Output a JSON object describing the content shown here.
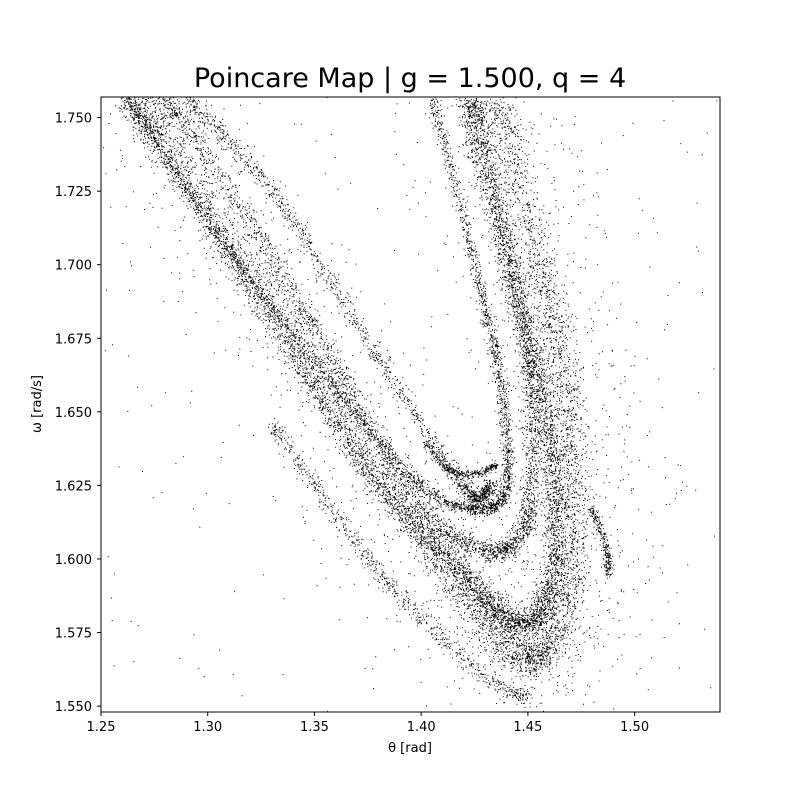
{
  "chart_data": {
    "type": "scatter",
    "title": "Poincare Map | g = 1.500, q = 4",
    "xlabel": "θ [rad]",
    "ylabel": "ω [rad/s]",
    "xlim": [
      1.25,
      1.54
    ],
    "ylim": [
      1.548,
      1.757
    ],
    "x_ticks": [
      "1.25",
      "1.30",
      "1.35",
      "1.40",
      "1.45",
      "1.50"
    ],
    "y_ticks": [
      "1.550",
      "1.575",
      "1.600",
      "1.625",
      "1.650",
      "1.675",
      "1.700",
      "1.725",
      "1.750"
    ],
    "grid": false,
    "legend": "none",
    "marker_color": "#000000",
    "marker": "tiny dots",
    "structure": {
      "description_strands": [
        {
          "name": "inner curve",
          "points": [
            [
              1.262,
              1.757
            ],
            [
              1.31,
              1.705
            ],
            [
              1.36,
              1.658
            ],
            [
              1.4,
              1.625
            ],
            [
              1.428,
              1.617
            ],
            [
              1.44,
              1.626
            ],
            [
              1.437,
              1.66
            ],
            [
              1.425,
              1.7
            ],
            [
              1.405,
              1.757
            ]
          ]
        },
        {
          "name": "main band lower",
          "points": [
            [
              1.262,
              1.757
            ],
            [
              1.3,
              1.715
            ],
            [
              1.34,
              1.67
            ],
            [
              1.38,
              1.625
            ],
            [
              1.42,
              1.595
            ],
            [
              1.445,
              1.578
            ],
            [
              1.46,
              1.59
            ],
            [
              1.462,
              1.625
            ],
            [
              1.455,
              1.66
            ],
            [
              1.44,
              1.7
            ],
            [
              1.42,
              1.757
            ]
          ]
        },
        {
          "name": "outer band",
          "points": [
            [
              1.27,
              1.757
            ],
            [
              1.33,
              1.69
            ],
            [
              1.39,
              1.62
            ],
            [
              1.43,
              1.58
            ],
            [
              1.455,
              1.567
            ],
            [
              1.47,
              1.6
            ],
            [
              1.468,
              1.65
            ],
            [
              1.455,
              1.7
            ],
            [
              1.435,
              1.757
            ]
          ]
        },
        {
          "name": "strand mid",
          "points": [
            [
              1.28,
              1.757
            ],
            [
              1.32,
              1.715
            ],
            [
              1.36,
              1.665
            ],
            [
              1.4,
              1.618
            ],
            [
              1.43,
              1.603
            ],
            [
              1.448,
              1.61
            ],
            [
              1.452,
              1.64
            ],
            [
              1.448,
              1.68
            ],
            [
              1.436,
              1.72
            ],
            [
              1.425,
              1.757
            ]
          ]
        },
        {
          "name": "secondary inner",
          "points": [
            [
              1.29,
              1.757
            ],
            [
              1.33,
              1.725
            ],
            [
              1.37,
              1.68
            ],
            [
              1.41,
              1.635
            ],
            [
              1.425,
              1.621
            ],
            [
              1.432,
              1.625
            ]
          ]
        },
        {
          "name": "lower left strand",
          "points": [
            [
              1.33,
              1.645
            ],
            [
              1.35,
              1.625
            ],
            [
              1.375,
              1.6
            ],
            [
              1.4,
              1.58
            ],
            [
              1.43,
              1.56
            ],
            [
              1.45,
              1.553
            ]
          ]
        },
        {
          "name": "right outer strand",
          "points": [
            [
              1.48,
              1.617
            ],
            [
              1.486,
              1.605
            ],
            [
              1.488,
              1.595
            ]
          ]
        },
        {
          "name": "spiral tip",
          "points": [
            [
              1.402,
              1.64
            ],
            [
              1.41,
              1.632
            ],
            [
              1.42,
              1.629
            ],
            [
              1.43,
              1.63
            ],
            [
              1.435,
              1.632
            ]
          ]
        }
      ]
    }
  }
}
